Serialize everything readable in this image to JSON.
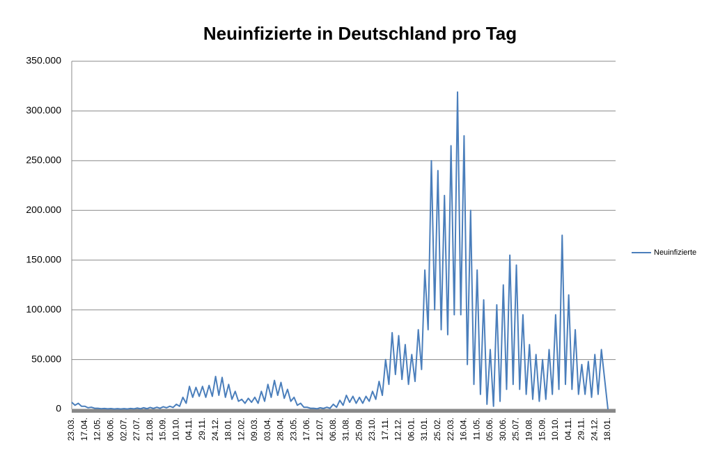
{
  "chart_data": {
    "type": "line",
    "title": "Neuinfizierte in Deutschland pro Tag",
    "categories": [
      "23.03.",
      null,
      null,
      null,
      "17.04.",
      null,
      null,
      null,
      "12.05.",
      null,
      null,
      null,
      "06.06.",
      null,
      null,
      null,
      "02.07.",
      null,
      null,
      null,
      "27.07.",
      null,
      null,
      null,
      "21.08.",
      null,
      null,
      null,
      "15.09.",
      null,
      null,
      null,
      "10.10.",
      null,
      null,
      null,
      "04.11.",
      null,
      null,
      null,
      "29.11.",
      null,
      null,
      null,
      "24.12.",
      null,
      null,
      null,
      "18.01.",
      null,
      null,
      null,
      "12.02.",
      null,
      null,
      null,
      "09.03.",
      null,
      null,
      null,
      "03.04.",
      null,
      null,
      null,
      "28.04.",
      null,
      null,
      null,
      "23.05.",
      null,
      null,
      null,
      "17.06.",
      null,
      null,
      null,
      "12.07.",
      null,
      null,
      null,
      "06.08.",
      null,
      null,
      null,
      "31.08.",
      null,
      null,
      null,
      "25.09.",
      null,
      null,
      null,
      "23.10.",
      null,
      null,
      null,
      "17.11.",
      null,
      null,
      null,
      "12.12.",
      null,
      null,
      null,
      "06.01.",
      null,
      null,
      null,
      "31.01.",
      null,
      null,
      null,
      "25.02.",
      null,
      null,
      null,
      "22.03.",
      null,
      null,
      null,
      "16.04.",
      null,
      null,
      null,
      "11.05.",
      null,
      null,
      null,
      "05.06.",
      null,
      null,
      null,
      "30.06.",
      null,
      null,
      null,
      "25.07.",
      null,
      null,
      null,
      "19.08.",
      null,
      null,
      null,
      "15.09.",
      null,
      null,
      null,
      "10.10.",
      null,
      null,
      null,
      "04.11.",
      null,
      null,
      null,
      "29.11.",
      null,
      null,
      null,
      "24.12.",
      null,
      null,
      null,
      "18.01."
    ],
    "series": [
      {
        "name": "Neuinfizierte",
        "color": "#4a7ebb",
        "values": [
          7000,
          4000,
          6000,
          3000,
          3000,
          1500,
          2000,
          1000,
          1000,
          500,
          800,
          400,
          700,
          300,
          600,
          300,
          600,
          300,
          800,
          400,
          1200,
          500,
          1500,
          600,
          1800,
          800,
          2000,
          1000,
          2500,
          1500,
          3000,
          1800,
          5000,
          3000,
          12000,
          6000,
          23000,
          12000,
          22000,
          13000,
          23000,
          12000,
          24000,
          13000,
          33000,
          14000,
          32000,
          12000,
          25000,
          10000,
          18000,
          8000,
          10000,
          6000,
          11000,
          7000,
          12000,
          6000,
          18000,
          8000,
          25000,
          12000,
          29000,
          14000,
          27000,
          11000,
          20000,
          8000,
          12000,
          4000,
          6000,
          2000,
          2000,
          1000,
          1000,
          500,
          1500,
          800,
          2000,
          1000,
          5000,
          2000,
          9000,
          4000,
          14000,
          7000,
          13000,
          6000,
          12000,
          6000,
          13000,
          8000,
          18000,
          10000,
          28000,
          14000,
          50000,
          25000,
          77000,
          35000,
          74000,
          30000,
          65000,
          25000,
          55000,
          28000,
          80000,
          40000,
          140000,
          80000,
          250000,
          100000,
          240000,
          80000,
          215000,
          75000,
          265000,
          95000,
          319000,
          95000,
          275000,
          45000,
          200000,
          25000,
          140000,
          15000,
          110000,
          5000,
          60000,
          3000,
          105000,
          8000,
          125000,
          20000,
          155000,
          25000,
          145000,
          20000,
          95000,
          15000,
          65000,
          10000,
          55000,
          8000,
          50000,
          10000,
          60000,
          15000,
          95000,
          20000,
          175000,
          25000,
          115000,
          20000,
          80000,
          15000,
          45000,
          15000,
          48000,
          12000,
          55000,
          15000,
          60000,
          30000,
          0
        ]
      }
    ],
    "ylim": [
      0,
      350000
    ],
    "yticks": [
      0,
      {
        "value": 50000,
        "label": "50.000"
      },
      {
        "value": 100000,
        "label": "100.000"
      },
      {
        "value": 150000,
        "label": "150.000"
      },
      {
        "value": 200000,
        "label": "200.000"
      },
      {
        "value": 250000,
        "label": "250.000"
      },
      {
        "value": 300000,
        "label": "300.000"
      },
      {
        "value": 350000,
        "label": "350.000"
      }
    ],
    "grid": true,
    "legend": "right"
  }
}
